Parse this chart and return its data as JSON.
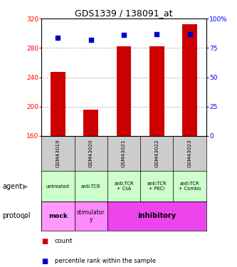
{
  "title": "GDS1339 / 138091_at",
  "samples": [
    "GSM43019",
    "GSM43020",
    "GSM43021",
    "GSM43022",
    "GSM43023"
  ],
  "bar_values": [
    247,
    196,
    282,
    282,
    312
  ],
  "bar_bottom": 160,
  "percentile_values": [
    84,
    82,
    86,
    87,
    87
  ],
  "ylim_left": [
    160,
    320
  ],
  "yticks_left": [
    160,
    200,
    240,
    280,
    320
  ],
  "yticks_right": [
    0,
    25,
    50,
    75,
    100
  ],
  "bar_color": "#cc0000",
  "dot_color": "#0000cc",
  "agent_labels": [
    "untreated",
    "anti-TCR",
    "anti-TCR\n+ CsA",
    "anti-TCR\n+ PKCi",
    "anti-TCR\n+ Combo"
  ],
  "agent_bg": "#ccffcc",
  "sample_bg": "#cccccc",
  "protocol_mock_color": "#ff99ff",
  "protocol_stimulatory_color": "#ff88ff",
  "protocol_inhibitory_color": "#ee44ee",
  "legend_count_color": "#cc0000",
  "legend_dot_color": "#0000cc",
  "agent_row_label": "agent",
  "protocol_row_label": "protocol"
}
